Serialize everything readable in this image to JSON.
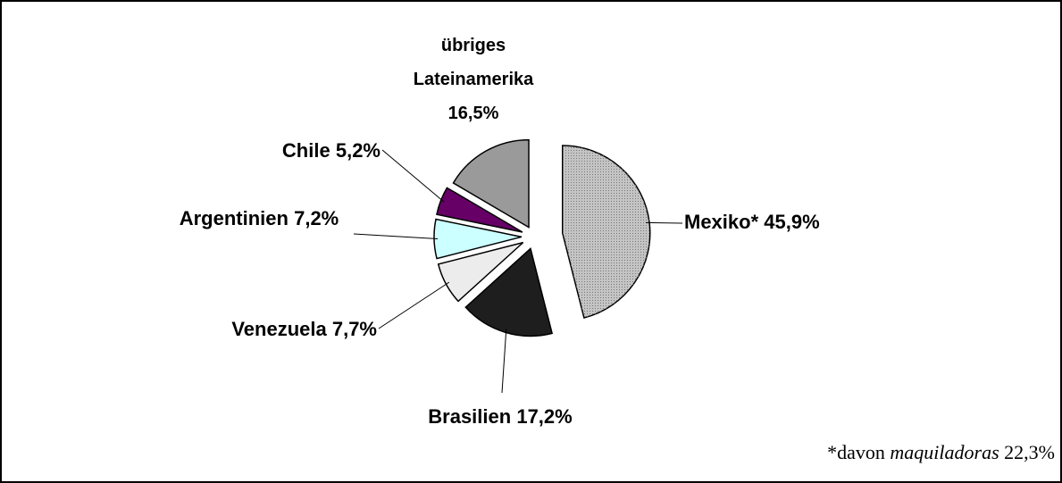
{
  "chart_data": {
    "type": "pie",
    "categories": [
      "Mexiko*",
      "Brasilien",
      "Venezuela",
      "Argentinien",
      "Chile",
      "übriges Lateinamerika"
    ],
    "values": [
      45.9,
      17.2,
      7.7,
      7.2,
      5.2,
      16.5
    ],
    "value_labels": [
      "45,9%",
      "17,2%",
      "7,7%",
      "7,2%",
      "5,2%",
      "16,5%"
    ],
    "colors": [
      "#c4c4c4",
      "#1e1e1e",
      "#ececec",
      "#ccffff",
      "#660066",
      "#9a9a9a"
    ],
    "footnote": {
      "prefix": "*davon",
      "term": "maquiladoras",
      "value": "22,3%"
    }
  }
}
